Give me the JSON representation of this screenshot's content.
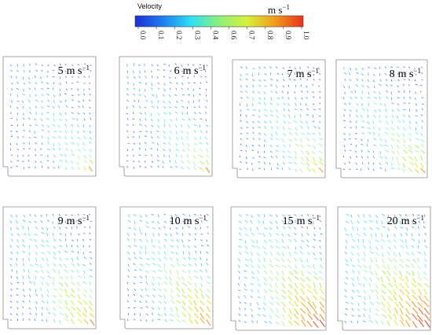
{
  "colorbar": {
    "title": "Velocity",
    "unit": "m s",
    "unit_exponent": "−1",
    "ticks": [
      "0.0",
      "0.1",
      "0.2",
      "0.3",
      "0.4",
      "0.6",
      "0.7",
      "0.8",
      "0.9",
      "1.0"
    ],
    "range": [
      0.0,
      1.0
    ],
    "stops": [
      "#1f2bd6",
      "#1d7ff0",
      "#2ee0f2",
      "#8ef07a",
      "#d8ef3a",
      "#f29a1e",
      "#e8321a"
    ]
  },
  "panels": [
    {
      "value": "5",
      "unit": "m s",
      "exp": "−1",
      "intensity": 0.55,
      "spread": 0.1
    },
    {
      "value": "6",
      "unit": "m s",
      "exp": "−1",
      "intensity": 0.6,
      "spread": 0.12
    },
    {
      "value": "7",
      "unit": "m s",
      "exp": "−1",
      "intensity": 0.66,
      "spread": 0.14
    },
    {
      "value": "8",
      "unit": "m s",
      "exp": "−1",
      "intensity": 0.7,
      "spread": 0.15
    },
    {
      "value": "9",
      "unit": "m s",
      "exp": "−1",
      "intensity": 0.78,
      "spread": 0.18
    },
    {
      "value": "10",
      "unit": "m s",
      "exp": "−1",
      "intensity": 0.84,
      "spread": 0.2
    },
    {
      "value": "15",
      "unit": "m s",
      "exp": "−1",
      "intensity": 0.97,
      "spread": 0.28
    },
    {
      "value": "20",
      "unit": "m s",
      "exp": "−1",
      "intensity": 1.0,
      "spread": 0.32
    }
  ]
}
